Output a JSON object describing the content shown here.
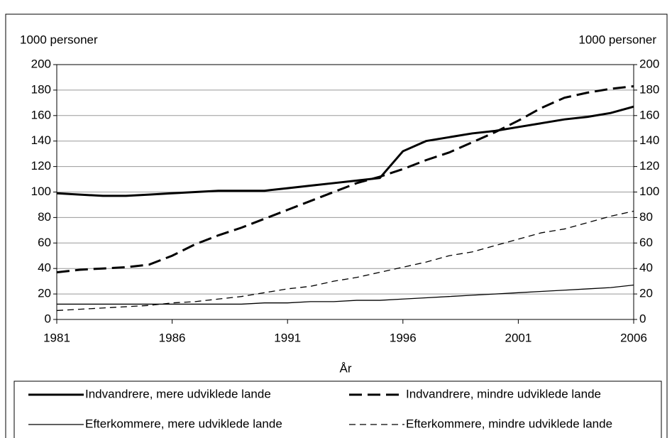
{
  "chart_data": {
    "type": "line",
    "y_label": "1000 personer",
    "y2_label": "1000 personer",
    "x_label": "År",
    "x": [
      1981,
      1982,
      1983,
      1984,
      1985,
      1986,
      1987,
      1988,
      1989,
      1990,
      1991,
      1992,
      1993,
      1994,
      1995,
      1996,
      1997,
      1998,
      1999,
      2000,
      2001,
      2002,
      2003,
      2004,
      2005,
      2006
    ],
    "xlim": [
      1981,
      2006
    ],
    "xticks": [
      1981,
      1986,
      1991,
      1996,
      2001,
      2006
    ],
    "ylim": [
      0,
      200
    ],
    "yticks": [
      0,
      20,
      40,
      60,
      80,
      100,
      120,
      140,
      160,
      180,
      200
    ],
    "y2lim": [
      0,
      200
    ],
    "y2ticks": [
      0,
      20,
      40,
      60,
      80,
      100,
      120,
      140,
      160,
      180,
      200
    ],
    "grid": true,
    "series": [
      {
        "name": "Indvandrere, mere udviklede lande",
        "color": "#000000",
        "style": "solid",
        "weight": "bold",
        "values": [
          99,
          98,
          97,
          97,
          98,
          99,
          100,
          101,
          101,
          101,
          103,
          105,
          107,
          109,
          111,
          132,
          140,
          143,
          146,
          148,
          151,
          154,
          157,
          159,
          162,
          167
        ]
      },
      {
        "name": "Indvandrere, mindre udviklede lande",
        "color": "#000000",
        "style": "dashed",
        "weight": "bold",
        "values": [
          37,
          39,
          40,
          41,
          43,
          50,
          59,
          66,
          72,
          79,
          86,
          93,
          100,
          107,
          112,
          118,
          125,
          131,
          139,
          147,
          156,
          166,
          174,
          178,
          181,
          183
        ]
      },
      {
        "name": "Efterkommere, mere udviklede lande",
        "color": "#000000",
        "style": "solid",
        "weight": "normal",
        "values": [
          12,
          12,
          12,
          12,
          12,
          12,
          12,
          12,
          12,
          13,
          13,
          14,
          14,
          15,
          15,
          16,
          17,
          18,
          19,
          20,
          21,
          22,
          23,
          24,
          25,
          27
        ]
      },
      {
        "name": "Efterkommere, mindre udviklede lande",
        "color": "#000000",
        "style": "dashed",
        "weight": "normal",
        "values": [
          7,
          8,
          9,
          10,
          11,
          13,
          14,
          16,
          18,
          21,
          24,
          26,
          30,
          33,
          37,
          41,
          45,
          50,
          53,
          58,
          63,
          68,
          71,
          76,
          81,
          85
        ]
      }
    ]
  }
}
